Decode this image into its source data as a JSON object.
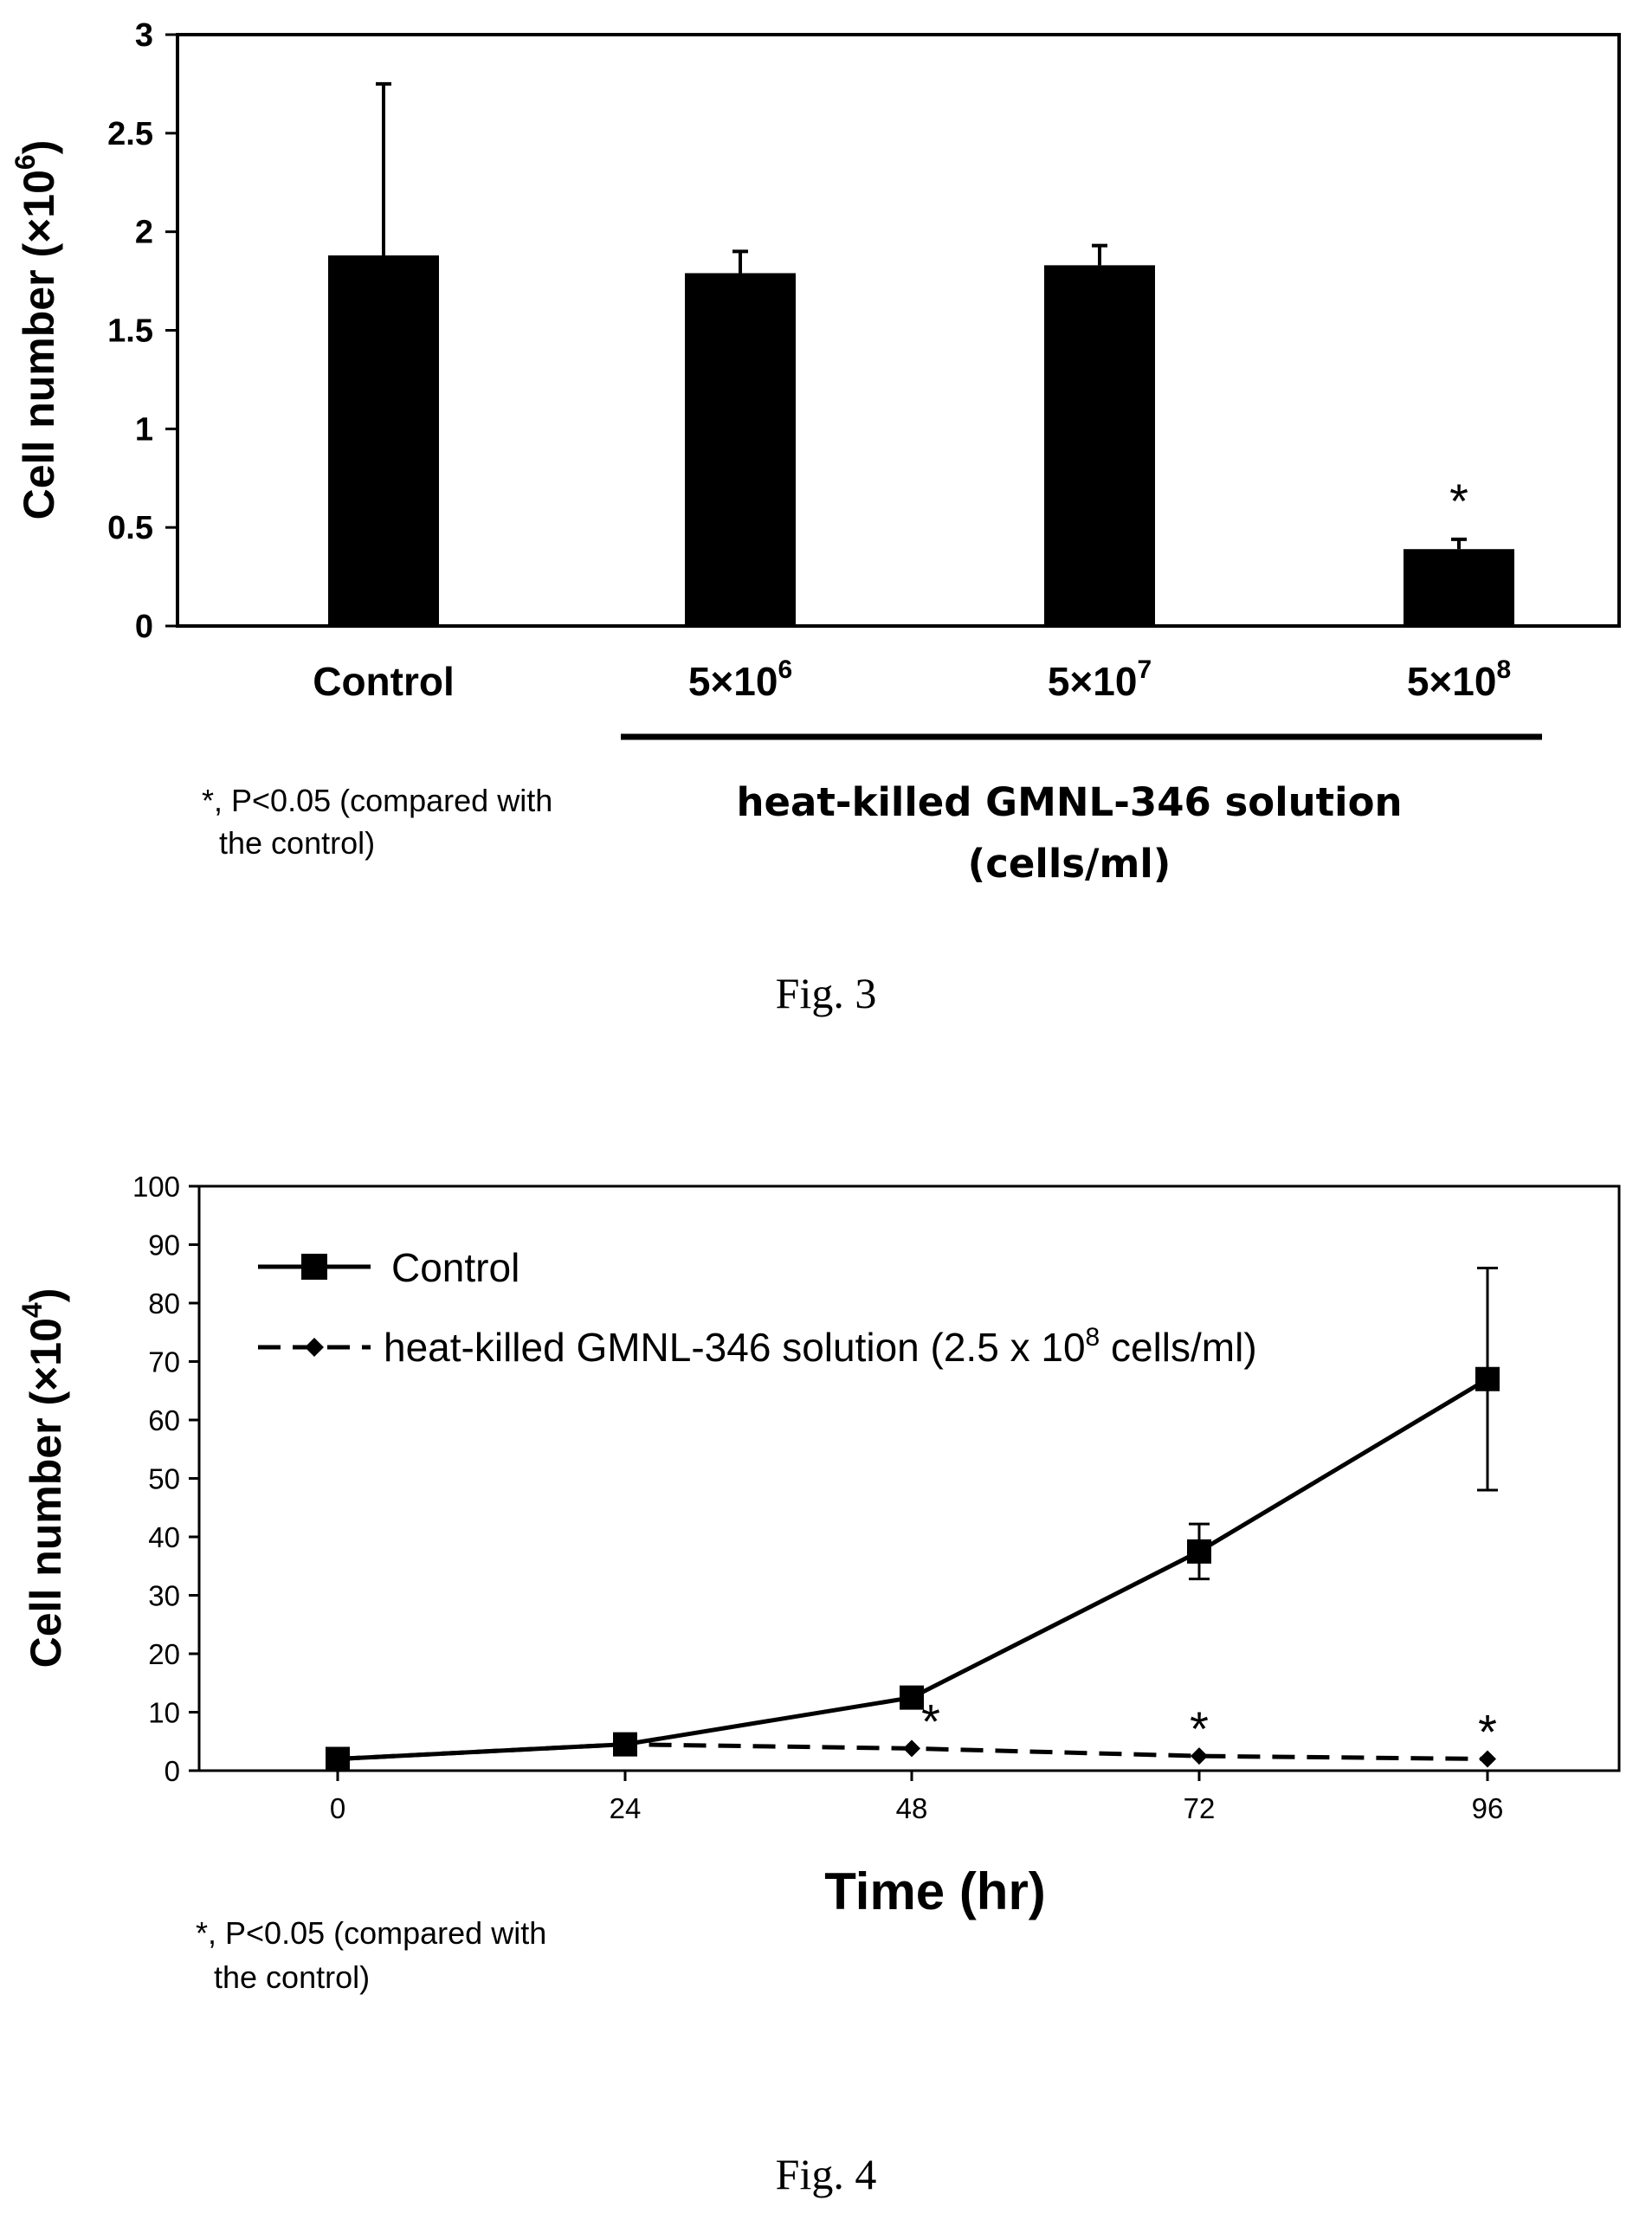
{
  "chart_data": [
    {
      "type": "bar",
      "ylabel": "Cell number (×10",
      "ylabel_exp": "6",
      "ylabel_close": ")",
      "ylim": [
        0,
        3
      ],
      "yticks": [
        "0",
        "0.5",
        "1",
        "1.5",
        "2",
        "2.5",
        "3"
      ],
      "categories": [
        "Control",
        "5×10",
        "5×10",
        "5×10"
      ],
      "category_exponents": [
        "",
        "6",
        "7",
        "8"
      ],
      "values": [
        1.88,
        1.79,
        1.83,
        0.39
      ],
      "errors": [
        0.87,
        0.11,
        0.1,
        0.05
      ],
      "significance": [
        "",
        "",
        "",
        "*"
      ],
      "group_label_line1": "heat-killed GMNL-346 solution",
      "group_label_line2": "(cells/ml)",
      "footnote_line1": "*, P<0.05 (compared with",
      "footnote_line2": "the control)",
      "figure_label": "Fig. 3",
      "grid": false
    },
    {
      "type": "line",
      "ylabel": "Cell number (×10",
      "ylabel_exp": "4",
      "ylabel_close": ")",
      "xlabel": "Time (hr)",
      "ylim": [
        0,
        100
      ],
      "yticks": [
        "0",
        "10",
        "20",
        "30",
        "40",
        "50",
        "60",
        "70",
        "80",
        "90",
        "100"
      ],
      "x": [
        0,
        24,
        48,
        72,
        96
      ],
      "xticks": [
        "0",
        "24",
        "48",
        "72",
        "96"
      ],
      "series": [
        {
          "name": "Control",
          "values": [
            2,
            4.5,
            12.5,
            37.5,
            67
          ],
          "errors": [
            0,
            0,
            0,
            4.7,
            19
          ],
          "style": "solid",
          "marker": "square"
        },
        {
          "name": "heat-killed GMNL-346 solution (2.5 x 10",
          "name_exp": "8",
          "name_close": " cells/ml)",
          "values": [
            2,
            4.5,
            3.8,
            2.5,
            2
          ],
          "style": "dashed",
          "marker": "diamond"
        }
      ],
      "significance": [
        "",
        "",
        "*",
        "*",
        "*"
      ],
      "legend_position": "top-left",
      "footnote_line1": "*, P<0.05 (compared with",
      "footnote_line2": "the control)",
      "figure_label": "Fig. 4",
      "grid": false
    }
  ]
}
